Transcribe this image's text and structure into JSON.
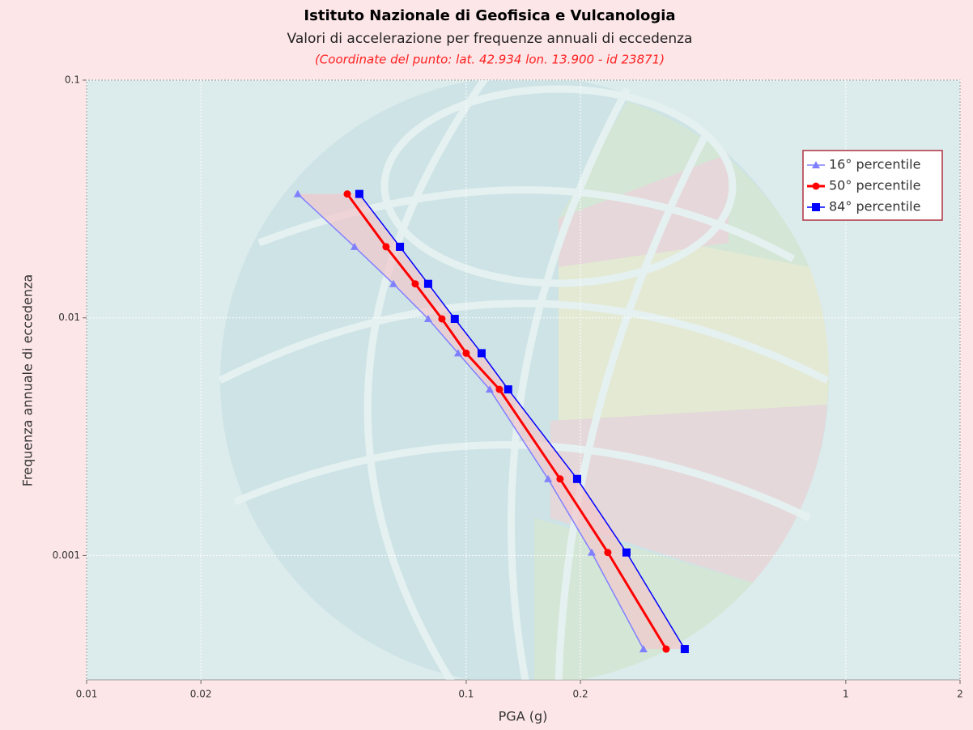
{
  "chart_data": {
    "type": "line",
    "title": "Istituto Nazionale di Geofisica e Vulcanologia",
    "subtitle": "Valori di accelerazione per frequenze annuali di eccedenza",
    "note": "(Coordinate del punto: lat. 42.934 lon. 13.900 - id 23871)",
    "x_label": "PGA (g)",
    "y_label": "Frequenza annuale di eccedenza",
    "log_x": true,
    "log_y": true,
    "grid": true,
    "legend_position": "upper-right",
    "band_color": "#f2c8cc",
    "xlim": [
      0.01,
      2
    ],
    "xticks": [
      0.01,
      0.02,
      0.1,
      0.2,
      1,
      2
    ],
    "ylim": [
      0.0003,
      0.1
    ],
    "yticks": [
      0.001,
      0.01,
      0.1
    ],
    "series": [
      {
        "name": "16° percentile",
        "color": "#8080ff",
        "marker": "triangle",
        "x": [
          0.036,
          0.0508,
          0.0643,
          0.0794,
          0.0952,
          0.1153,
          0.1643,
          0.2141,
          0.2931
        ],
        "values": [
          0.0332,
          0.0199,
          0.0139,
          0.0099,
          0.0071,
          0.005,
          0.0021,
          0.00103,
          0.000404
        ]
      },
      {
        "name": "50° percentile",
        "color": "#ff0000",
        "marker": "circle",
        "x": [
          0.0486,
          0.0615,
          0.0734,
          0.0863,
          0.1,
          0.1223,
          0.1767,
          0.2361,
          0.3363
        ],
        "values": [
          0.0332,
          0.0199,
          0.0139,
          0.0099,
          0.0071,
          0.005,
          0.0021,
          0.00103,
          0.000404
        ]
      },
      {
        "name": "84° percentile",
        "color": "#0000ff",
        "marker": "square",
        "x": [
          0.0523,
          0.0669,
          0.0794,
          0.0933,
          0.1098,
          0.129,
          0.196,
          0.2644,
          0.3765
        ],
        "values": [
          0.0332,
          0.0199,
          0.0139,
          0.0099,
          0.0071,
          0.005,
          0.0021,
          0.00103,
          0.000404
        ]
      }
    ]
  }
}
